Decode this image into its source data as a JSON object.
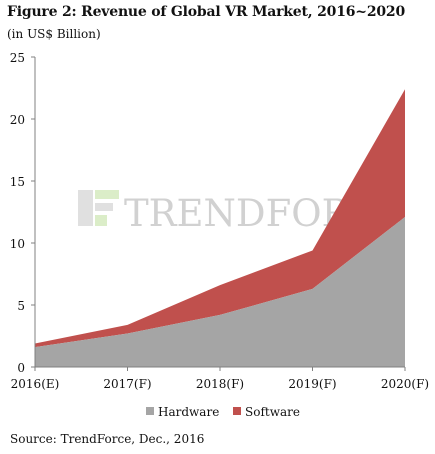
{
  "header": {
    "title": "Figure 2: Revenue of Global VR Market, 2016~2020",
    "unit": "(in US$ Billion)"
  },
  "watermark": {
    "brand": "TrendForce"
  },
  "source": "Source: TrendForce, Dec., 2016",
  "colors": {
    "hardware": "#a5a5a5",
    "software": "#c0504d",
    "axis": "#808080"
  },
  "chart_data": {
    "type": "area",
    "stacked": true,
    "title": "Figure 2: Revenue of Global VR Market, 2016~2020",
    "subtitle": "(in US$ Billion)",
    "categories": [
      "2016(E)",
      "2017(F)",
      "2018(F)",
      "2019(F)",
      "2020(F)"
    ],
    "series": [
      {
        "name": "Hardware",
        "values": [
          1.6,
          2.7,
          4.2,
          6.3,
          12.1
        ]
      },
      {
        "name": "Software",
        "values": [
          0.3,
          0.7,
          2.4,
          3.1,
          10.3
        ]
      }
    ],
    "yticks": [
      0,
      5,
      10,
      15,
      20,
      25
    ],
    "ylim": [
      0,
      25
    ],
    "legend": "bottom",
    "grid": false
  }
}
